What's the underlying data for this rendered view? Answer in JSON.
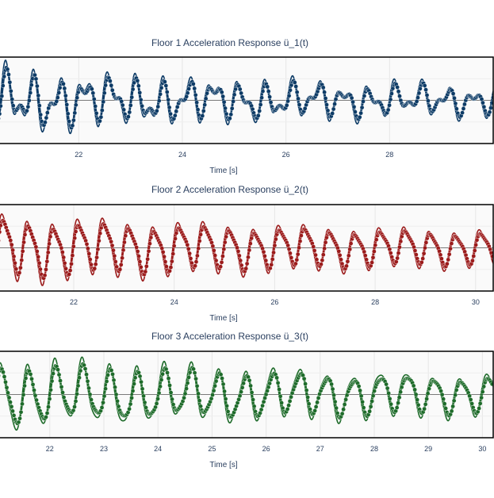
{
  "chart_data": [
    {
      "type": "line",
      "title": "Floor 1 Acceleration Response ü_1(t)",
      "xlabel": "Time [s]",
      "ylabel": "",
      "xlim": [
        20.45,
        30.0
      ],
      "xticks": [
        "22",
        "24",
        "26",
        "28"
      ],
      "xtick_values": [
        22,
        24,
        26,
        28
      ],
      "color": "#0d3b66",
      "signal": {
        "f1": 2.0,
        "f2": 3.6,
        "a1": 0.55,
        "a2": 0.35,
        "decay": 0.12
      },
      "series": [
        {
          "name": "",
          "style": "line"
        },
        {
          "name": "",
          "style": "markers+line"
        }
      ],
      "grid": true
    },
    {
      "type": "line",
      "title": "Floor 2 Acceleration Response ü_2(t)",
      "xlabel": "Time [s]",
      "ylabel": "",
      "xlim": [
        20.5,
        30.35
      ],
      "xticks": [
        "22",
        "24",
        "26",
        "28",
        "30"
      ],
      "xtick_values": [
        22,
        24,
        26,
        28,
        30
      ],
      "color": "#9b1b1b",
      "signal": {
        "f1": 2.0,
        "f2": 4.0,
        "a1": 0.75,
        "a2": 0.18,
        "decay": 0.09
      },
      "series": [
        {
          "name": "",
          "style": "line"
        },
        {
          "name": "",
          "style": "markers+line"
        }
      ],
      "grid": true
    },
    {
      "type": "line",
      "title": "Floor 3 Acceleration Response ü_3(t)",
      "xlabel": "Time [s]",
      "ylabel": "",
      "xlim": [
        21.05,
        30.2
      ],
      "xticks": [
        "22",
        "23",
        "24",
        "25",
        "26",
        "27",
        "28",
        "29",
        "30"
      ],
      "xtick_values": [
        22,
        23,
        24,
        25,
        26,
        27,
        28,
        29,
        30
      ],
      "color": "#1e6b2a",
      "signal": {
        "f1": 2.0,
        "f2": 3.9,
        "a1": 0.8,
        "a2": 0.15,
        "decay": 0.08
      },
      "series": [
        {
          "name": "",
          "style": "line"
        },
        {
          "name": "",
          "style": "markers+line"
        }
      ],
      "grid": true
    }
  ]
}
